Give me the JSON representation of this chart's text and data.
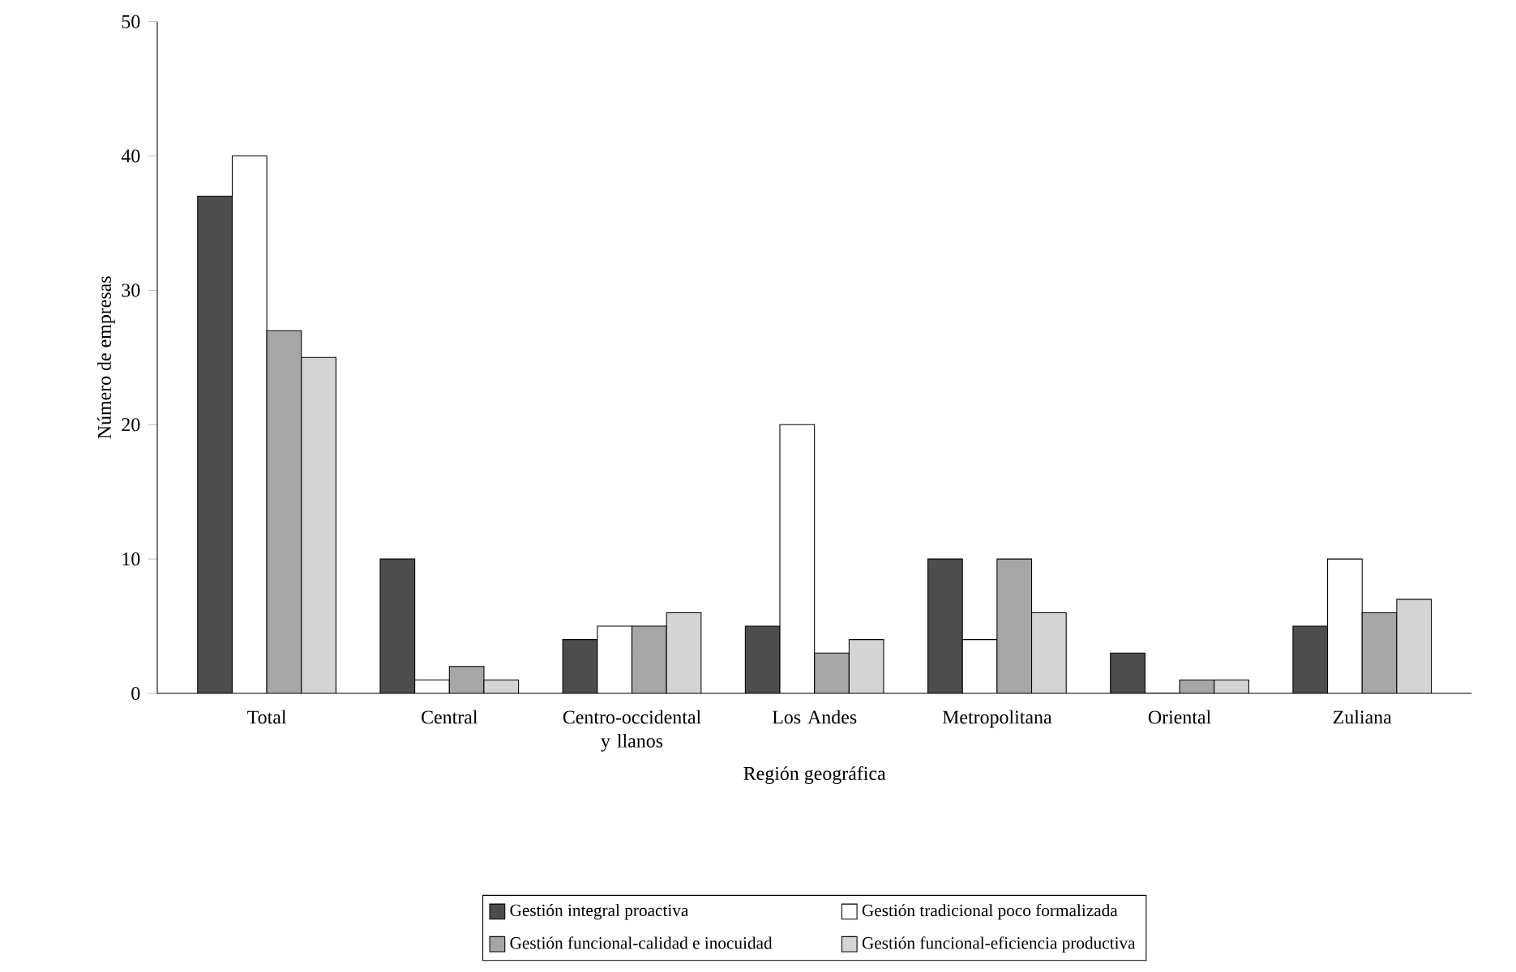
{
  "chart_data": {
    "type": "bar",
    "xlabel": "Región geográfica",
    "ylabel": "Número de empresas",
    "categories": [
      "Total",
      "Central",
      "Centro-occidental y llanos",
      "Los Andes",
      "Metropolitana",
      "Oriental",
      "Zuliana"
    ],
    "series": [
      {
        "name": "Gestión integral proactiva",
        "color": "#4d4d4d",
        "values": [
          37,
          10,
          4,
          5,
          10,
          3,
          5
        ]
      },
      {
        "name": "Gestión tradicional poco formalizada",
        "color": "#ffffff",
        "values": [
          40,
          1,
          5,
          20,
          4,
          0,
          10
        ]
      },
      {
        "name": "Gestión funcional-calidad e inocuidad",
        "color": "#a6a6a6",
        "values": [
          27,
          2,
          5,
          3,
          10,
          1,
          6
        ]
      },
      {
        "name": "Gestión funcional-eficiencia productiva",
        "color": "#d4d4d4",
        "values": [
          25,
          1,
          6,
          4,
          6,
          1,
          7
        ]
      }
    ],
    "ylim": [
      0,
      50
    ],
    "yticks": [
      0,
      10,
      20,
      30,
      40,
      50
    ],
    "legend": "bottom",
    "grid": false
  }
}
